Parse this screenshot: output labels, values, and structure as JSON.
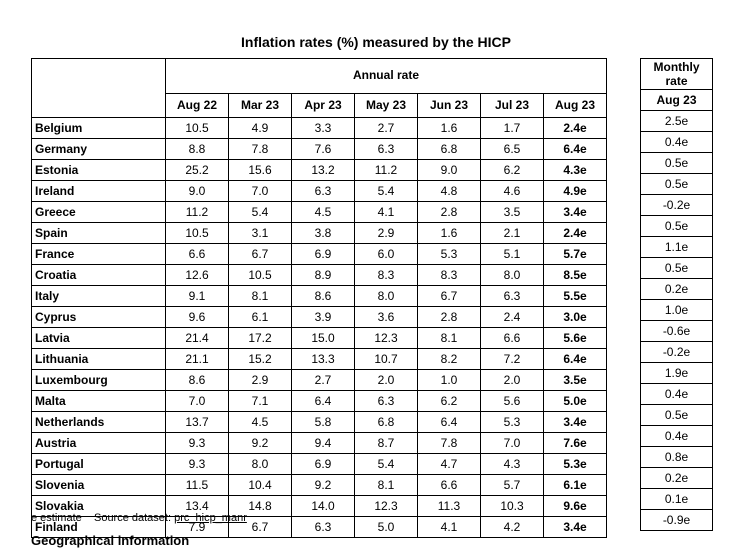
{
  "title": "Inflation rates (%) measured by the HICP",
  "annual_header": "Annual rate",
  "monthly_header": "Monthly rate",
  "columns": [
    "Aug 22",
    "Mar 23",
    "Apr 23",
    "May 23",
    "Jun 23",
    "Jul 23",
    "Aug 23"
  ],
  "monthly_column": "Aug 23",
  "rows": [
    {
      "country": "Belgium",
      "values": [
        "10.5",
        "4.9",
        "3.3",
        "2.7",
        "1.6",
        "1.7",
        "2.4e"
      ],
      "monthly": "2.5e"
    },
    {
      "country": "Germany",
      "values": [
        "8.8",
        "7.8",
        "7.6",
        "6.3",
        "6.8",
        "6.5",
        "6.4e"
      ],
      "monthly": "0.4e"
    },
    {
      "country": "Estonia",
      "values": [
        "25.2",
        "15.6",
        "13.2",
        "11.2",
        "9.0",
        "6.2",
        "4.3e"
      ],
      "monthly": "0.5e"
    },
    {
      "country": "Ireland",
      "values": [
        "9.0",
        "7.0",
        "6.3",
        "5.4",
        "4.8",
        "4.6",
        "4.9e"
      ],
      "monthly": "0.5e"
    },
    {
      "country": "Greece",
      "values": [
        "11.2",
        "5.4",
        "4.5",
        "4.1",
        "2.8",
        "3.5",
        "3.4e"
      ],
      "monthly": "-0.2e"
    },
    {
      "country": "Spain",
      "values": [
        "10.5",
        "3.1",
        "3.8",
        "2.9",
        "1.6",
        "2.1",
        "2.4e"
      ],
      "monthly": "0.5e"
    },
    {
      "country": "France",
      "values": [
        "6.6",
        "6.7",
        "6.9",
        "6.0",
        "5.3",
        "5.1",
        "5.7e"
      ],
      "monthly": "1.1e"
    },
    {
      "country": "Croatia",
      "values": [
        "12.6",
        "10.5",
        "8.9",
        "8.3",
        "8.3",
        "8.0",
        "8.5e"
      ],
      "monthly": "0.5e"
    },
    {
      "country": "Italy",
      "values": [
        "9.1",
        "8.1",
        "8.6",
        "8.0",
        "6.7",
        "6.3",
        "5.5e"
      ],
      "monthly": "0.2e"
    },
    {
      "country": "Cyprus",
      "values": [
        "9.6",
        "6.1",
        "3.9",
        "3.6",
        "2.8",
        "2.4",
        "3.0e"
      ],
      "monthly": "1.0e"
    },
    {
      "country": "Latvia",
      "values": [
        "21.4",
        "17.2",
        "15.0",
        "12.3",
        "8.1",
        "6.6",
        "5.6e"
      ],
      "monthly": "-0.6e"
    },
    {
      "country": "Lithuania",
      "values": [
        "21.1",
        "15.2",
        "13.3",
        "10.7",
        "8.2",
        "7.2",
        "6.4e"
      ],
      "monthly": "-0.2e"
    },
    {
      "country": "Luxembourg",
      "values": [
        "8.6",
        "2.9",
        "2.7",
        "2.0",
        "1.0",
        "2.0",
        "3.5e"
      ],
      "monthly": "1.9e"
    },
    {
      "country": "Malta",
      "values": [
        "7.0",
        "7.1",
        "6.4",
        "6.3",
        "6.2",
        "5.6",
        "5.0e"
      ],
      "monthly": "0.4e"
    },
    {
      "country": "Netherlands",
      "values": [
        "13.7",
        "4.5",
        "5.8",
        "6.8",
        "6.4",
        "5.3",
        "3.4e"
      ],
      "monthly": "0.5e"
    },
    {
      "country": "Austria",
      "values": [
        "9.3",
        "9.2",
        "9.4",
        "8.7",
        "7.8",
        "7.0",
        "7.6e"
      ],
      "monthly": "0.4e"
    },
    {
      "country": "Portugal",
      "values": [
        "9.3",
        "8.0",
        "6.9",
        "5.4",
        "4.7",
        "4.3",
        "5.3e"
      ],
      "monthly": "0.8e"
    },
    {
      "country": "Slovenia",
      "values": [
        "11.5",
        "10.4",
        "9.2",
        "8.1",
        "6.6",
        "5.7",
        "6.1e"
      ],
      "monthly": "0.2e"
    },
    {
      "country": "Slovakia",
      "values": [
        "13.4",
        "14.8",
        "14.0",
        "12.3",
        "11.3",
        "10.3",
        "9.6e"
      ],
      "monthly": "0.1e"
    },
    {
      "country": "Finland",
      "values": [
        "7.9",
        "6.7",
        "6.3",
        "5.0",
        "4.1",
        "4.2",
        "3.4e"
      ],
      "monthly": "-0.9e"
    }
  ],
  "footnote": {
    "estimate": "e estimate",
    "source_label": "Source dataset:",
    "source_link": "prc_hicp_manr"
  },
  "next_heading": "Geographical information"
}
